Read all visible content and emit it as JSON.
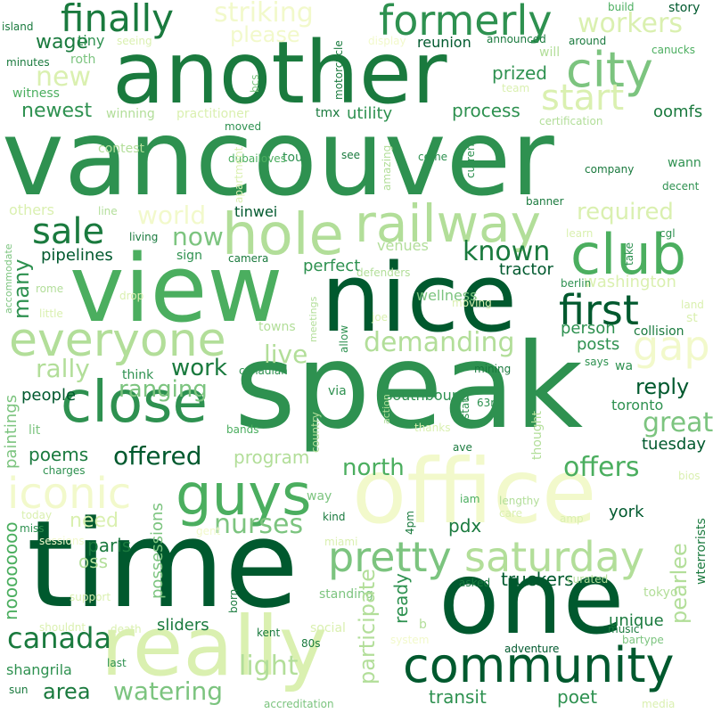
{
  "palette": {
    "darkest": "#00592e",
    "dark": "#1a7a3e",
    "mid_dark": "#2e9150",
    "mid": "#4bae5f",
    "light_mid": "#7cc47f",
    "light": "#b2de99",
    "pale": "#daf0b0",
    "palest": "#f2f9cb"
  },
  "words": [
    {
      "text": "vancouver",
      "color": "#2e9150"
    },
    {
      "text": "speak",
      "color": "#2e9150"
    },
    {
      "text": "time",
      "color": "#00592e"
    },
    {
      "text": "another",
      "color": "#1a7a3e"
    },
    {
      "text": "office",
      "color": "#f2f9cb"
    },
    {
      "text": "one",
      "color": "#00592e"
    },
    {
      "text": "nice",
      "color": "#00592e"
    },
    {
      "text": "view",
      "color": "#4bae5f"
    },
    {
      "text": "really",
      "color": "#daf0b0"
    },
    {
      "text": "community",
      "color": "#00592e"
    },
    {
      "text": "club",
      "color": "#4bae5f"
    },
    {
      "text": "hole",
      "color": "#b2de99"
    },
    {
      "text": "railway",
      "color": "#b2de99"
    },
    {
      "text": "close",
      "color": "#2e9150"
    },
    {
      "text": "everyone",
      "color": "#b2de99"
    },
    {
      "text": "guys",
      "color": "#4bae5f"
    },
    {
      "text": "formerly",
      "color": "#2e9150"
    },
    {
      "text": "city",
      "color": "#7cc47f"
    },
    {
      "text": "pretty",
      "color": "#7cc47f"
    },
    {
      "text": "saturday",
      "color": "#b2de99"
    },
    {
      "text": "iconic",
      "color": "#f2f9cb"
    },
    {
      "text": "finally",
      "color": "#1a7a3e"
    },
    {
      "text": "start",
      "color": "#daf0b0"
    },
    {
      "text": "first",
      "color": "#00592e"
    },
    {
      "text": "demanding",
      "color": "#b2de99"
    },
    {
      "text": "gap",
      "color": "#f2f9cb"
    },
    {
      "text": "sale",
      "color": "#1a7a3e"
    },
    {
      "text": "known",
      "color": "#1a7a3e"
    },
    {
      "text": "striking",
      "color": "#f2f9cb"
    },
    {
      "text": "workers",
      "color": "#daf0b0"
    },
    {
      "text": "please",
      "color": "#f2f9cb"
    },
    {
      "text": "new",
      "color": "#daf0b0"
    },
    {
      "text": "now",
      "color": "#7cc47f"
    },
    {
      "text": "world",
      "color": "#f2f9cb"
    },
    {
      "text": "required",
      "color": "#daf0b0"
    },
    {
      "text": "rally",
      "color": "#b2de99"
    },
    {
      "text": "live",
      "color": "#b2de99"
    },
    {
      "text": "ranging",
      "color": "#7cc47f"
    },
    {
      "text": "work",
      "color": "#1a7a3e"
    },
    {
      "text": "reply",
      "color": "#00592e"
    },
    {
      "text": "great",
      "color": "#7cc47f"
    },
    {
      "text": "offers",
      "color": "#4bae5f"
    },
    {
      "text": "offered",
      "color": "#00592e"
    },
    {
      "text": "north",
      "color": "#4bae5f"
    },
    {
      "text": "nurses",
      "color": "#7cc47f"
    },
    {
      "text": "canada",
      "color": "#1a7a3e"
    },
    {
      "text": "light",
      "color": "#b2de99"
    },
    {
      "text": "watering",
      "color": "#7cc47f"
    },
    {
      "text": "area",
      "color": "#1a7a3e"
    },
    {
      "text": "transit",
      "color": "#2e9150"
    },
    {
      "text": "poet",
      "color": "#2e9150"
    },
    {
      "text": "participate",
      "color": "#b2de99"
    },
    {
      "text": "pearlee",
      "color": "#b2de99"
    },
    {
      "text": "many",
      "color": "#2e9150"
    },
    {
      "text": "noooooooo",
      "color": "#4bae5f"
    },
    {
      "text": "paintings",
      "color": "#7cc47f"
    },
    {
      "text": "possessions",
      "color": "#7cc47f"
    },
    {
      "text": "pipelines",
      "color": "#00592e"
    },
    {
      "text": "newest",
      "color": "#2e9150"
    },
    {
      "text": "wage",
      "color": "#1a7a3e"
    },
    {
      "text": "process",
      "color": "#2e9150"
    },
    {
      "text": "prized",
      "color": "#2e9150"
    },
    {
      "text": "oomfs",
      "color": "#1a7a3e"
    },
    {
      "text": "utility",
      "color": "#2e9150"
    },
    {
      "text": "perfect",
      "color": "#2e9150"
    },
    {
      "text": "tractor",
      "color": "#00592e"
    },
    {
      "text": "washington",
      "color": "#daf0b0"
    },
    {
      "text": "person",
      "color": "#2e9150"
    },
    {
      "text": "posts",
      "color": "#2e9150"
    },
    {
      "text": "collision",
      "color": "#1a7a3e"
    },
    {
      "text": "people",
      "color": "#00592e"
    },
    {
      "text": "poems",
      "color": "#1a7a3e"
    },
    {
      "text": "need",
      "color": "#daf0b0"
    },
    {
      "text": "paris",
      "color": "#1a7a3e"
    },
    {
      "text": "oss",
      "color": "#b2de99"
    },
    {
      "text": "toronto",
      "color": "#2e9150"
    },
    {
      "text": "tuesday",
      "color": "#00592e"
    },
    {
      "text": "york",
      "color": "#00592e"
    },
    {
      "text": "pdx",
      "color": "#1a7a3e"
    },
    {
      "text": "ready",
      "color": "#2e9150"
    },
    {
      "text": "truckers",
      "color": "#00592e"
    },
    {
      "text": "unique",
      "color": "#1a7a3e"
    },
    {
      "text": "sliders",
      "color": "#1a7a3e"
    },
    {
      "text": "shangrila",
      "color": "#2e9150"
    },
    {
      "text": "southbound",
      "color": "#2e9150"
    },
    {
      "text": "program",
      "color": "#b2de99"
    },
    {
      "text": "wellness",
      "color": "#7cc47f"
    },
    {
      "text": "venues",
      "color": "#b2de99"
    },
    {
      "text": "tinwei",
      "color": "#00592e"
    },
    {
      "text": "reunion",
      "color": "#00592e"
    },
    {
      "text": "island",
      "color": "#1a7a3e"
    },
    {
      "text": "tiny",
      "color": "#2e9150"
    },
    {
      "text": "minutes",
      "color": "#1a7a3e"
    },
    {
      "text": "roth",
      "color": "#7cc47f"
    },
    {
      "text": "witness",
      "color": "#4bae5f"
    },
    {
      "text": "winning",
      "color": "#b2de99"
    },
    {
      "text": "practitioner",
      "color": "#daf0b0"
    },
    {
      "text": "seeing",
      "color": "#daf0b0"
    },
    {
      "text": "contest",
      "color": "#b2de99"
    },
    {
      "text": "moved",
      "color": "#2e9150"
    },
    {
      "text": "tmx",
      "color": "#1a7a3e"
    },
    {
      "text": "bcs",
      "color": "#7cc47f"
    },
    {
      "text": "motorcycle",
      "color": "#1a7a3e"
    },
    {
      "text": "display",
      "color": "#f2f9cb"
    },
    {
      "text": "will",
      "color": "#b2de99"
    },
    {
      "text": "announced",
      "color": "#1a7a3e"
    },
    {
      "text": "around",
      "color": "#1a7a3e"
    },
    {
      "text": "build",
      "color": "#4bae5f"
    },
    {
      "text": "story",
      "color": "#00592e"
    },
    {
      "text": "canucks",
      "color": "#4bae5f"
    },
    {
      "text": "team",
      "color": "#daf0b0"
    },
    {
      "text": "certification",
      "color": "#b2de99"
    },
    {
      "text": "see",
      "color": "#1a7a3e"
    },
    {
      "text": "come",
      "color": "#2e9150"
    },
    {
      "text": "tour",
      "color": "#2e9150"
    },
    {
      "text": "current",
      "color": "#2e9150"
    },
    {
      "text": "company",
      "color": "#1a7a3e"
    },
    {
      "text": "wann",
      "color": "#2e9150"
    },
    {
      "text": "decent",
      "color": "#2e9150"
    },
    {
      "text": "dubailoves",
      "color": "#4bae5f"
    },
    {
      "text": "apartment",
      "color": "#daf0b0"
    },
    {
      "text": "amazing",
      "color": "#b2de99"
    },
    {
      "text": "others",
      "color": "#daf0b0"
    },
    {
      "text": "line",
      "color": "#b2de99"
    },
    {
      "text": "living",
      "color": "#1a7a3e"
    },
    {
      "text": "banner",
      "color": "#1a7a3e"
    },
    {
      "text": "learn",
      "color": "#daf0b0"
    },
    {
      "text": "cgl",
      "color": "#2e9150"
    },
    {
      "text": "take",
      "color": "#2e9150"
    },
    {
      "text": "sign",
      "color": "#2e9150"
    },
    {
      "text": "camera",
      "color": "#1a7a3e"
    },
    {
      "text": "defenders",
      "color": "#b2de99"
    },
    {
      "text": "iam",
      "color": "#4bae5f"
    },
    {
      "text": "berlin",
      "color": "#2e9150"
    },
    {
      "text": "accommodate",
      "color": "#7cc47f"
    },
    {
      "text": "rome",
      "color": "#b2de99"
    },
    {
      "text": "drop",
      "color": "#daf0b0"
    },
    {
      "text": "little",
      "color": "#daf0b0"
    },
    {
      "text": "towns",
      "color": "#b2de99"
    },
    {
      "text": "meetings",
      "color": "#b2de99"
    },
    {
      "text": "allow",
      "color": "#2e9150"
    },
    {
      "text": "joe",
      "color": "#daf0b0"
    },
    {
      "text": "moving",
      "color": "#daf0b0"
    },
    {
      "text": "land",
      "color": "#daf0b0"
    },
    {
      "text": "st",
      "color": "#daf0b0"
    },
    {
      "text": "says",
      "color": "#2e9150"
    },
    {
      "text": "wa",
      "color": "#2e9150"
    },
    {
      "text": "think",
      "color": "#2e9150"
    },
    {
      "text": "canadian",
      "color": "#2e9150"
    },
    {
      "text": "via",
      "color": "#2e9150"
    },
    {
      "text": "mining",
      "color": "#1a7a3e"
    },
    {
      "text": "action",
      "color": "#b2de99"
    },
    {
      "text": "stat",
      "color": "#2e9150"
    },
    {
      "text": "63rd",
      "color": "#2e9150"
    },
    {
      "text": "thought",
      "color": "#b2de99"
    },
    {
      "text": "thanks",
      "color": "#daf0b0"
    },
    {
      "text": "ave",
      "color": "#1a7a3e"
    },
    {
      "text": "country",
      "color": "#b2de99"
    },
    {
      "text": "lit",
      "color": "#7cc47f"
    },
    {
      "text": "bands",
      "color": "#4bae5f"
    },
    {
      "text": "charges",
      "color": "#2e9150"
    },
    {
      "text": "way",
      "color": "#7cc47f"
    },
    {
      "text": "lengthy",
      "color": "#b2de99"
    },
    {
      "text": "care",
      "color": "#daf0b0"
    },
    {
      "text": "amp",
      "color": "#daf0b0"
    },
    {
      "text": "kind",
      "color": "#1a7a3e"
    },
    {
      "text": "4pm",
      "color": "#1a7a3e"
    },
    {
      "text": "bios",
      "color": "#daf0b0"
    },
    {
      "text": "wterrorists",
      "color": "#1a7a3e"
    },
    {
      "text": "today",
      "color": "#daf0b0"
    },
    {
      "text": "miss",
      "color": "#2e9150"
    },
    {
      "text": "sessions",
      "color": "#f2f9cb"
    },
    {
      "text": "gent",
      "color": "#f2f9cb"
    },
    {
      "text": "miami",
      "color": "#daf0b0"
    },
    {
      "text": "support",
      "color": "#daf0b0"
    },
    {
      "text": "curated",
      "color": "#b2de99"
    },
    {
      "text": "asked",
      "color": "#1a7a3e"
    },
    {
      "text": "tokyo",
      "color": "#b2de99"
    },
    {
      "text": "standing",
      "color": "#7cc47f"
    },
    {
      "text": "born",
      "color": "#1a7a3e"
    },
    {
      "text": "shouldnt",
      "color": "#daf0b0"
    },
    {
      "text": "death",
      "color": "#daf0b0"
    },
    {
      "text": "social",
      "color": "#daf0b0"
    },
    {
      "text": "b",
      "color": "#b2de99"
    },
    {
      "text": "music",
      "color": "#1a7a3e"
    },
    {
      "text": "bartype",
      "color": "#7cc47f"
    },
    {
      "text": "kent",
      "color": "#1a7a3e"
    },
    {
      "text": "80s",
      "color": "#1a7a3e"
    },
    {
      "text": "system",
      "color": "#f2f9cb"
    },
    {
      "text": "adventure",
      "color": "#00592e"
    },
    {
      "text": "last",
      "color": "#2e9150"
    },
    {
      "text": "sun",
      "color": "#1a7a3e"
    },
    {
      "text": "accreditation",
      "color": "#7cc47f"
    },
    {
      "text": "media",
      "color": "#daf0b0"
    }
  ]
}
